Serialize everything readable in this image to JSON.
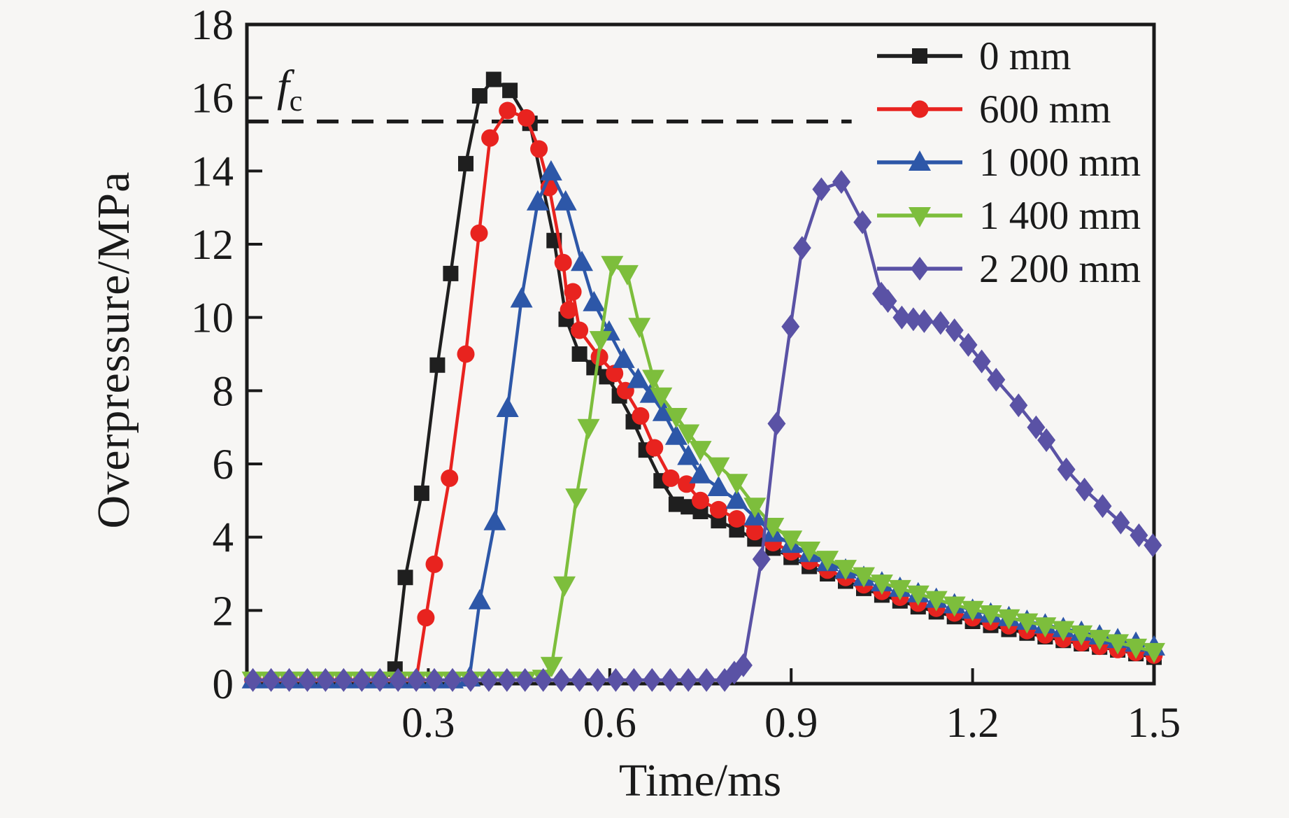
{
  "chart_data": {
    "type": "line",
    "title": "",
    "xlabel": "Time/ms",
    "ylabel": "Overpressure/MPa",
    "xlim": [
      0,
      1.5
    ],
    "ylim": [
      0,
      18
    ],
    "x_tick_labels": [
      "0.3",
      "0.6",
      "0.9",
      "1.2",
      "1.5"
    ],
    "x_tick_values": [
      0.3,
      0.6,
      0.9,
      1.2,
      1.5
    ],
    "y_tick_labels": [
      "0",
      "2",
      "4",
      "6",
      "8",
      "10",
      "12",
      "14",
      "16",
      "18"
    ],
    "y_tick_values": [
      0,
      2,
      4,
      6,
      8,
      10,
      12,
      14,
      16,
      18
    ],
    "grid": false,
    "legend_position": "top-right",
    "background_color": "#f7f6f4",
    "axis_color": "#1a1a1a",
    "fc_line": {
      "label_main": "f",
      "label_sub": "c",
      "value": 15.35,
      "extent_t": 1.0,
      "style": "dashed",
      "color": "#1a1a1a"
    },
    "series": [
      {
        "name": "0 mm",
        "color": "#1f1f1f",
        "marker": "square",
        "points": [
          [
            0.01,
            0.1
          ],
          [
            0.04,
            0.1
          ],
          [
            0.07,
            0.1
          ],
          [
            0.1,
            0.1
          ],
          [
            0.13,
            0.1
          ],
          [
            0.16,
            0.1
          ],
          [
            0.19,
            0.1
          ],
          [
            0.22,
            0.1
          ],
          [
            0.245,
            0.4
          ],
          [
            0.262,
            2.9
          ],
          [
            0.289,
            5.2
          ],
          [
            0.315,
            8.7
          ],
          [
            0.337,
            11.2
          ],
          [
            0.362,
            14.2
          ],
          [
            0.385,
            16.05
          ],
          [
            0.408,
            16.5
          ],
          [
            0.435,
            16.2
          ],
          [
            0.468,
            15.3
          ],
          [
            0.508,
            12.1
          ],
          [
            0.528,
            9.95
          ],
          [
            0.55,
            9.0
          ],
          [
            0.574,
            8.63
          ],
          [
            0.595,
            8.38
          ],
          [
            0.616,
            7.86
          ],
          [
            0.639,
            7.15
          ],
          [
            0.66,
            6.38
          ],
          [
            0.685,
            5.54
          ],
          [
            0.71,
            4.9
          ],
          [
            0.73,
            4.83
          ],
          [
            0.75,
            4.7
          ],
          [
            0.78,
            4.45
          ],
          [
            0.81,
            4.2
          ],
          [
            0.84,
            3.95
          ],
          [
            0.87,
            3.7
          ],
          [
            0.9,
            3.45
          ],
          [
            0.93,
            3.2
          ],
          [
            0.96,
            3.0
          ],
          [
            0.99,
            2.8
          ],
          [
            1.02,
            2.6
          ],
          [
            1.05,
            2.42
          ],
          [
            1.08,
            2.26
          ],
          [
            1.11,
            2.1
          ],
          [
            1.14,
            1.96
          ],
          [
            1.17,
            1.83
          ],
          [
            1.2,
            1.7
          ],
          [
            1.23,
            1.59
          ],
          [
            1.26,
            1.48
          ],
          [
            1.29,
            1.38
          ],
          [
            1.32,
            1.28
          ],
          [
            1.35,
            1.18
          ],
          [
            1.38,
            1.09
          ],
          [
            1.41,
            1.0
          ],
          [
            1.44,
            0.92
          ],
          [
            1.47,
            0.82
          ],
          [
            1.5,
            0.72
          ]
        ]
      },
      {
        "name": "600 mm",
        "color": "#e8231f",
        "marker": "circle",
        "points": [
          [
            0.01,
            0.1
          ],
          [
            0.04,
            0.1
          ],
          [
            0.07,
            0.1
          ],
          [
            0.1,
            0.1
          ],
          [
            0.13,
            0.1
          ],
          [
            0.16,
            0.1
          ],
          [
            0.19,
            0.1
          ],
          [
            0.22,
            0.1
          ],
          [
            0.25,
            0.1
          ],
          [
            0.28,
            0.1
          ],
          [
            0.296,
            1.8
          ],
          [
            0.31,
            3.26
          ],
          [
            0.335,
            5.61
          ],
          [
            0.362,
            9.0
          ],
          [
            0.384,
            12.3
          ],
          [
            0.402,
            14.9
          ],
          [
            0.431,
            15.65
          ],
          [
            0.462,
            15.45
          ],
          [
            0.483,
            14.6
          ],
          [
            0.5,
            13.55
          ],
          [
            0.523,
            11.5
          ],
          [
            0.532,
            10.2
          ],
          [
            0.539,
            10.7
          ],
          [
            0.55,
            9.65
          ],
          [
            0.583,
            8.92
          ],
          [
            0.608,
            8.47
          ],
          [
            0.626,
            8.0
          ],
          [
            0.651,
            7.31
          ],
          [
            0.674,
            6.44
          ],
          [
            0.701,
            5.61
          ],
          [
            0.727,
            5.45
          ],
          [
            0.75,
            5.0
          ],
          [
            0.78,
            4.75
          ],
          [
            0.81,
            4.5
          ],
          [
            0.84,
            4.15
          ],
          [
            0.87,
            3.85
          ],
          [
            0.9,
            3.6
          ],
          [
            0.93,
            3.35
          ],
          [
            0.96,
            3.1
          ],
          [
            0.99,
            2.9
          ],
          [
            1.02,
            2.7
          ],
          [
            1.05,
            2.52
          ],
          [
            1.08,
            2.36
          ],
          [
            1.11,
            2.2
          ],
          [
            1.14,
            2.06
          ],
          [
            1.17,
            1.93
          ],
          [
            1.2,
            1.8
          ],
          [
            1.23,
            1.69
          ],
          [
            1.26,
            1.58
          ],
          [
            1.29,
            1.45
          ],
          [
            1.32,
            1.33
          ],
          [
            1.35,
            1.22
          ],
          [
            1.38,
            1.12
          ],
          [
            1.41,
            1.02
          ],
          [
            1.44,
            0.93
          ],
          [
            1.47,
            0.85
          ],
          [
            1.5,
            0.78
          ]
        ]
      },
      {
        "name": "1 000 mm",
        "color": "#2d57a8",
        "marker": "triangle-up",
        "points": [
          [
            0.01,
            0.1
          ],
          [
            0.04,
            0.1
          ],
          [
            0.07,
            0.1
          ],
          [
            0.1,
            0.1
          ],
          [
            0.13,
            0.1
          ],
          [
            0.16,
            0.1
          ],
          [
            0.19,
            0.1
          ],
          [
            0.22,
            0.1
          ],
          [
            0.25,
            0.1
          ],
          [
            0.28,
            0.1
          ],
          [
            0.31,
            0.1
          ],
          [
            0.34,
            0.1
          ],
          [
            0.368,
            0.15
          ],
          [
            0.385,
            2.26
          ],
          [
            0.41,
            4.42
          ],
          [
            0.431,
            7.51
          ],
          [
            0.454,
            10.5
          ],
          [
            0.481,
            13.15
          ],
          [
            0.503,
            13.97
          ],
          [
            0.527,
            13.15
          ],
          [
            0.554,
            11.5
          ],
          [
            0.574,
            10.4
          ],
          [
            0.599,
            9.6
          ],
          [
            0.623,
            8.85
          ],
          [
            0.647,
            8.3
          ],
          [
            0.668,
            7.9
          ],
          [
            0.689,
            7.4
          ],
          [
            0.71,
            6.75
          ],
          [
            0.73,
            6.2
          ],
          [
            0.75,
            5.7
          ],
          [
            0.78,
            5.35
          ],
          [
            0.81,
            5.0
          ],
          [
            0.84,
            4.55
          ],
          [
            0.87,
            4.1
          ],
          [
            0.9,
            3.8
          ],
          [
            0.93,
            3.55
          ],
          [
            0.96,
            3.3
          ],
          [
            0.99,
            3.1
          ],
          [
            1.02,
            2.9
          ],
          [
            1.05,
            2.75
          ],
          [
            1.08,
            2.6
          ],
          [
            1.11,
            2.45
          ],
          [
            1.14,
            2.3
          ],
          [
            1.17,
            2.15
          ],
          [
            1.2,
            2.0
          ],
          [
            1.23,
            1.9
          ],
          [
            1.26,
            1.8
          ],
          [
            1.29,
            1.7
          ],
          [
            1.32,
            1.6
          ],
          [
            1.35,
            1.5
          ],
          [
            1.38,
            1.4
          ],
          [
            1.41,
            1.3
          ],
          [
            1.44,
            1.2
          ],
          [
            1.47,
            1.1
          ],
          [
            1.5,
            1.0
          ]
        ]
      },
      {
        "name": "1 400 mm",
        "color": "#7dbe3c",
        "marker": "triangle-down",
        "points": [
          [
            0.01,
            0.1
          ],
          [
            0.04,
            0.1
          ],
          [
            0.07,
            0.1
          ],
          [
            0.1,
            0.1
          ],
          [
            0.13,
            0.1
          ],
          [
            0.16,
            0.1
          ],
          [
            0.19,
            0.1
          ],
          [
            0.22,
            0.1
          ],
          [
            0.25,
            0.1
          ],
          [
            0.28,
            0.1
          ],
          [
            0.31,
            0.1
          ],
          [
            0.34,
            0.1
          ],
          [
            0.37,
            0.1
          ],
          [
            0.4,
            0.1
          ],
          [
            0.43,
            0.1
          ],
          [
            0.46,
            0.1
          ],
          [
            0.49,
            0.15
          ],
          [
            0.504,
            0.5
          ],
          [
            0.525,
            2.7
          ],
          [
            0.545,
            5.1
          ],
          [
            0.565,
            7.0
          ],
          [
            0.585,
            9.4
          ],
          [
            0.604,
            11.45
          ],
          [
            0.629,
            11.2
          ],
          [
            0.649,
            9.76
          ],
          [
            0.672,
            8.34
          ],
          [
            0.685,
            7.86
          ],
          [
            0.71,
            7.3
          ],
          [
            0.73,
            6.85
          ],
          [
            0.75,
            6.4
          ],
          [
            0.78,
            5.95
          ],
          [
            0.81,
            5.5
          ],
          [
            0.84,
            4.85
          ],
          [
            0.87,
            4.3
          ],
          [
            0.9,
            3.95
          ],
          [
            0.93,
            3.65
          ],
          [
            0.96,
            3.4
          ],
          [
            0.99,
            3.15
          ],
          [
            1.02,
            2.95
          ],
          [
            1.05,
            2.75
          ],
          [
            1.08,
            2.6
          ],
          [
            1.11,
            2.45
          ],
          [
            1.14,
            2.3
          ],
          [
            1.17,
            2.15
          ],
          [
            1.2,
            2.03
          ],
          [
            1.23,
            1.91
          ],
          [
            1.26,
            1.8
          ],
          [
            1.29,
            1.69
          ],
          [
            1.32,
            1.58
          ],
          [
            1.35,
            1.48
          ],
          [
            1.38,
            1.36
          ],
          [
            1.41,
            1.24
          ],
          [
            1.44,
            1.12
          ],
          [
            1.47,
            1.0
          ],
          [
            1.5,
            0.88
          ]
        ]
      },
      {
        "name": "2 200 mm",
        "color": "#5a52a5",
        "marker": "diamond",
        "points": [
          [
            0.01,
            0.1
          ],
          [
            0.04,
            0.1
          ],
          [
            0.07,
            0.1
          ],
          [
            0.1,
            0.1
          ],
          [
            0.13,
            0.1
          ],
          [
            0.16,
            0.1
          ],
          [
            0.19,
            0.1
          ],
          [
            0.22,
            0.1
          ],
          [
            0.25,
            0.1
          ],
          [
            0.28,
            0.1
          ],
          [
            0.31,
            0.1
          ],
          [
            0.34,
            0.1
          ],
          [
            0.37,
            0.1
          ],
          [
            0.4,
            0.1
          ],
          [
            0.43,
            0.1
          ],
          [
            0.46,
            0.1
          ],
          [
            0.49,
            0.1
          ],
          [
            0.52,
            0.1
          ],
          [
            0.55,
            0.1
          ],
          [
            0.58,
            0.1
          ],
          [
            0.61,
            0.1
          ],
          [
            0.64,
            0.1
          ],
          [
            0.67,
            0.1
          ],
          [
            0.7,
            0.1
          ],
          [
            0.73,
            0.1
          ],
          [
            0.76,
            0.1
          ],
          [
            0.79,
            0.1
          ],
          [
            0.806,
            0.3
          ],
          [
            0.821,
            0.5
          ],
          [
            0.851,
            3.4
          ],
          [
            0.876,
            7.1
          ],
          [
            0.899,
            9.75
          ],
          [
            0.918,
            11.9
          ],
          [
            0.95,
            13.5
          ],
          [
            0.983,
            13.7
          ],
          [
            1.018,
            12.6
          ],
          [
            1.049,
            10.65
          ],
          [
            1.06,
            10.45
          ],
          [
            1.083,
            10.0
          ],
          [
            1.102,
            9.95
          ],
          [
            1.12,
            9.9
          ],
          [
            1.147,
            9.85
          ],
          [
            1.17,
            9.65
          ],
          [
            1.193,
            9.25
          ],
          [
            1.215,
            8.8
          ],
          [
            1.239,
            8.3
          ],
          [
            1.276,
            7.6
          ],
          [
            1.305,
            7.0
          ],
          [
            1.322,
            6.65
          ],
          [
            1.355,
            5.85
          ],
          [
            1.385,
            5.3
          ],
          [
            1.415,
            4.85
          ],
          [
            1.445,
            4.4
          ],
          [
            1.475,
            4.05
          ],
          [
            1.498,
            3.78
          ]
        ]
      }
    ]
  }
}
